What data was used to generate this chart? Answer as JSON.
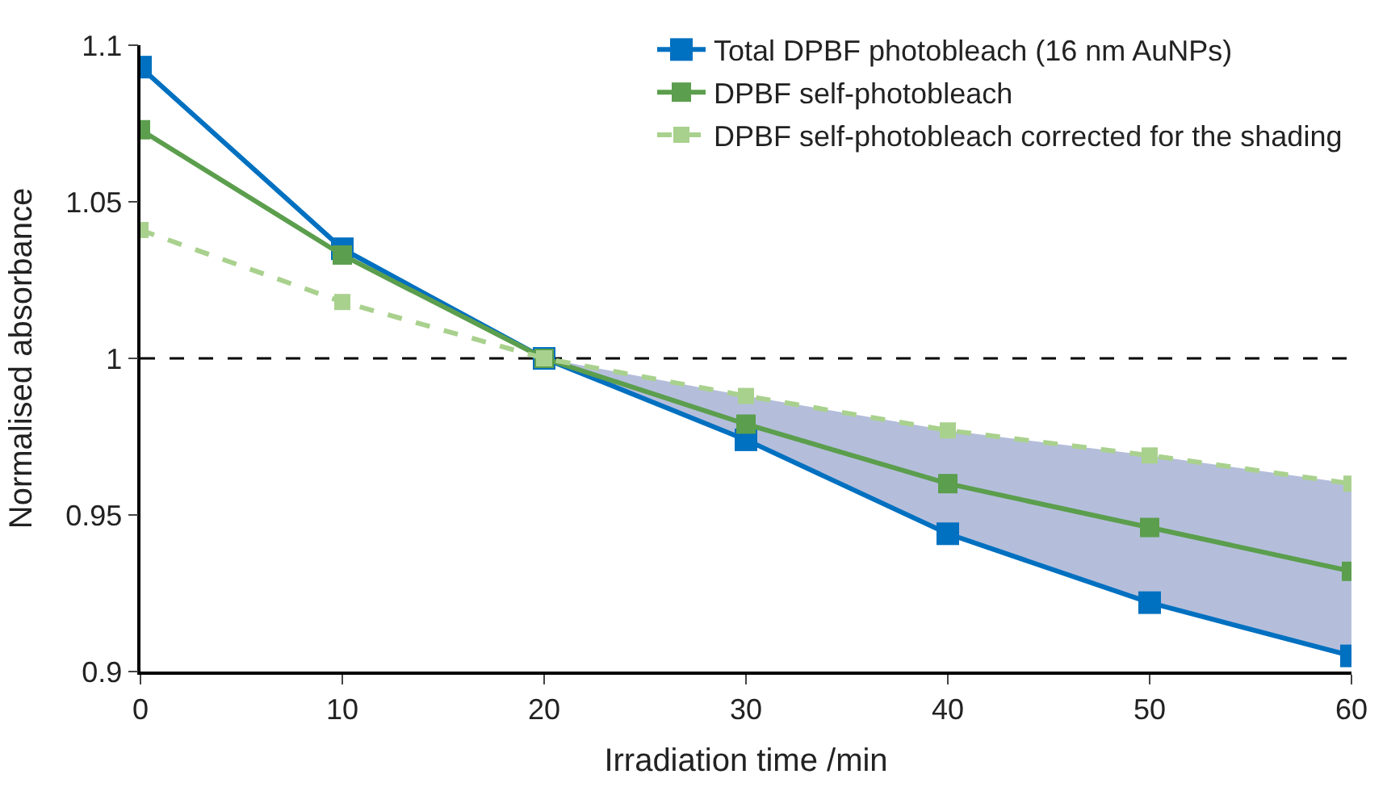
{
  "chart_data": {
    "type": "line",
    "xlabel": "Irradiation time /min",
    "ylabel": "Normalised absorbance",
    "x": [
      0,
      10,
      20,
      30,
      40,
      50,
      60
    ],
    "series": [
      {
        "name": "Total DPBF photobleach (16 nm AuNPs)",
        "color": "#0070c0",
        "values": [
          1.093,
          1.035,
          1.0,
          0.974,
          0.944,
          0.922,
          0.905
        ]
      },
      {
        "name": "DPBF self-photobleach",
        "color": "#5b9e4d",
        "values": [
          1.073,
          1.033,
          1.0,
          0.979,
          0.96,
          0.946,
          0.932
        ]
      },
      {
        "name": "DPBF self-photobleach corrected for the shading",
        "color": "#a9d18e",
        "line_style": "dashed",
        "values": [
          1.041,
          1.018,
          1.0,
          0.988,
          0.977,
          0.969,
          0.96
        ],
        "lower": [
          null,
          null,
          1.0,
          0.974,
          0.944,
          0.922,
          0.905
        ],
        "upper": [
          null,
          null,
          1.0,
          0.988,
          0.977,
          0.969,
          0.96
        ]
      }
    ],
    "xlim": [
      0,
      60
    ],
    "xticks": [
      0,
      10,
      20,
      30,
      40,
      50,
      60
    ],
    "ylim": [
      0.9,
      1.1
    ],
    "yticks": [
      {
        "value": 0.9,
        "label": "0.9"
      },
      {
        "value": 0.95,
        "label": "0.95"
      },
      {
        "value": 1.0,
        "label": "1"
      },
      {
        "value": 1.05,
        "label": "1.05"
      },
      {
        "value": 1.1,
        "label": "1.1"
      }
    ],
    "ref_lines": [
      {
        "axis": "y",
        "value": 1.0,
        "label": null,
        "color": "#000000",
        "line_style": "dashed"
      }
    ],
    "marker": "square",
    "line_style": "solid",
    "grid": false,
    "legend": "top right"
  }
}
